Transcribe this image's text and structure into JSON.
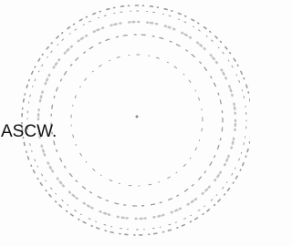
{
  "stamp": {
    "text": "ASCW."
  }
}
